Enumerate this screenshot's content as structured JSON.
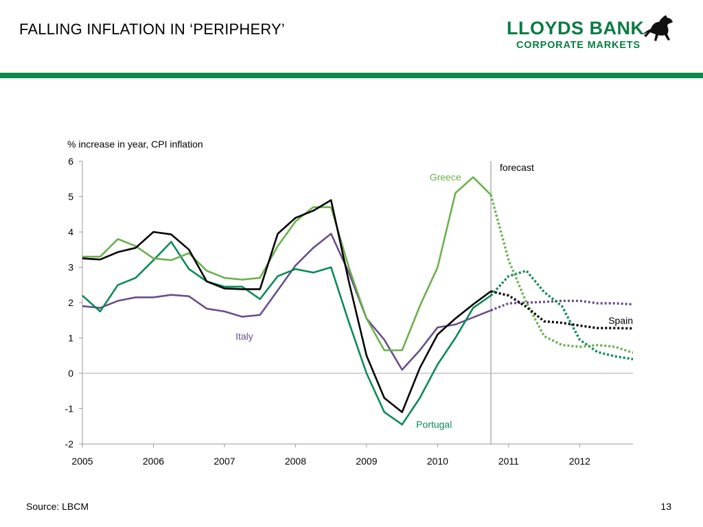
{
  "header": {
    "title": "FALLING INFLATION IN ‘PERIPHERY’",
    "logo_line1": "LLOYDS BANK",
    "logo_line2": "CORPORATE MARKETS"
  },
  "footer": {
    "source": "Source: LBCM",
    "page_number": "13"
  },
  "colors": {
    "brand_green": "#0b8a4a",
    "greece": "#6ab04c",
    "spain": "#000000",
    "italy": "#6a4c8c",
    "portugal": "#0a8a56"
  },
  "chart_data": {
    "type": "line",
    "ylabel": "% increase in year, CPI inflation",
    "xlabel": "",
    "ylim": [
      -2,
      6
    ],
    "xlim": [
      2005.0,
      2012.75
    ],
    "yticks": [
      -2,
      -1,
      0,
      1,
      2,
      3,
      4,
      5,
      6
    ],
    "xticks": [
      "2005",
      "2006",
      "2007",
      "2008",
      "2009",
      "2010",
      "2011",
      "2012"
    ],
    "grid": false,
    "forecast_start": 2010.75,
    "forecast_label": "forecast",
    "series": [
      {
        "name": "Greece",
        "color": "#6ab04c",
        "actual": {
          "x": [
            2005.0,
            2005.25,
            2005.5,
            2005.75,
            2006.0,
            2006.25,
            2006.5,
            2006.75,
            2007.0,
            2007.25,
            2007.5,
            2007.75,
            2008.0,
            2008.25,
            2008.5,
            2008.75,
            2009.0,
            2009.25,
            2009.5,
            2009.75,
            2010.0,
            2010.25,
            2010.5,
            2010.75
          ],
          "y": [
            3.3,
            3.3,
            3.8,
            3.6,
            3.25,
            3.2,
            3.4,
            2.9,
            2.7,
            2.65,
            2.7,
            3.6,
            4.3,
            4.7,
            4.7,
            3.0,
            1.55,
            0.65,
            0.65,
            1.9,
            3.0,
            5.1,
            5.55,
            5.05
          ]
        },
        "forecast": {
          "x": [
            2010.75,
            2011.0,
            2011.25,
            2011.5,
            2011.75,
            2012.0,
            2012.25,
            2012.5,
            2012.75
          ],
          "y": [
            5.05,
            3.2,
            2.0,
            1.05,
            0.8,
            0.75,
            0.8,
            0.75,
            0.58
          ]
        }
      },
      {
        "name": "Spain",
        "color": "#000000",
        "actual": {
          "x": [
            2005.0,
            2005.25,
            2005.5,
            2005.75,
            2006.0,
            2006.25,
            2006.5,
            2006.75,
            2007.0,
            2007.25,
            2007.5,
            2007.75,
            2008.0,
            2008.25,
            2008.5,
            2008.75,
            2009.0,
            2009.25,
            2009.5,
            2009.75,
            2010.0,
            2010.25,
            2010.5,
            2010.75
          ],
          "y": [
            3.25,
            3.22,
            3.43,
            3.55,
            4.0,
            3.93,
            3.5,
            2.6,
            2.4,
            2.38,
            2.38,
            3.95,
            4.4,
            4.6,
            4.9,
            2.6,
            0.5,
            -0.7,
            -1.1,
            0.15,
            1.1,
            1.55,
            1.95,
            2.32
          ]
        },
        "forecast": {
          "x": [
            2010.75,
            2011.0,
            2011.25,
            2011.5,
            2011.75,
            2012.0,
            2012.25,
            2012.5,
            2012.75
          ],
          "y": [
            2.32,
            2.2,
            1.88,
            1.47,
            1.43,
            1.35,
            1.28,
            1.28,
            1.27
          ]
        }
      },
      {
        "name": "Italy",
        "color": "#6a4c8c",
        "actual": {
          "x": [
            2005.0,
            2005.25,
            2005.5,
            2005.75,
            2006.0,
            2006.25,
            2006.5,
            2006.75,
            2007.0,
            2007.25,
            2007.5,
            2007.75,
            2008.0,
            2008.25,
            2008.5,
            2008.75,
            2009.0,
            2009.25,
            2009.5,
            2009.75,
            2010.0,
            2010.25,
            2010.5,
            2010.75
          ],
          "y": [
            1.9,
            1.85,
            2.05,
            2.15,
            2.15,
            2.22,
            2.18,
            1.83,
            1.75,
            1.6,
            1.65,
            2.35,
            3.05,
            3.55,
            3.95,
            2.85,
            1.55,
            0.95,
            0.1,
            0.65,
            1.3,
            1.38,
            1.58,
            1.78
          ]
        },
        "forecast": {
          "x": [
            2010.75,
            2011.0,
            2011.25,
            2011.5,
            2011.75,
            2012.0,
            2012.25,
            2012.5,
            2012.75
          ],
          "y": [
            1.78,
            1.98,
            2.0,
            2.02,
            2.05,
            2.05,
            1.98,
            1.98,
            1.95
          ]
        }
      },
      {
        "name": "Portugal",
        "color": "#0a8a56",
        "actual": {
          "x": [
            2005.0,
            2005.25,
            2005.5,
            2005.75,
            2006.0,
            2006.25,
            2006.5,
            2006.75,
            2007.0,
            2007.25,
            2007.5,
            2007.75,
            2008.0,
            2008.25,
            2008.5,
            2008.75,
            2009.0,
            2009.25,
            2009.5,
            2009.75,
            2010.0,
            2010.25,
            2010.5,
            2010.75
          ],
          "y": [
            2.2,
            1.75,
            2.5,
            2.7,
            3.2,
            3.72,
            2.95,
            2.6,
            2.45,
            2.45,
            2.1,
            2.75,
            2.95,
            2.85,
            3.0,
            1.45,
            0.0,
            -1.1,
            -1.45,
            -0.7,
            0.25,
            1.0,
            1.85,
            2.2
          ]
        },
        "forecast": {
          "x": [
            2010.75,
            2011.0,
            2011.25,
            2011.5,
            2011.75,
            2012.0,
            2012.25,
            2012.5,
            2012.75
          ],
          "y": [
            2.2,
            2.75,
            2.9,
            2.3,
            1.9,
            0.95,
            0.6,
            0.48,
            0.4
          ]
        }
      }
    ]
  }
}
